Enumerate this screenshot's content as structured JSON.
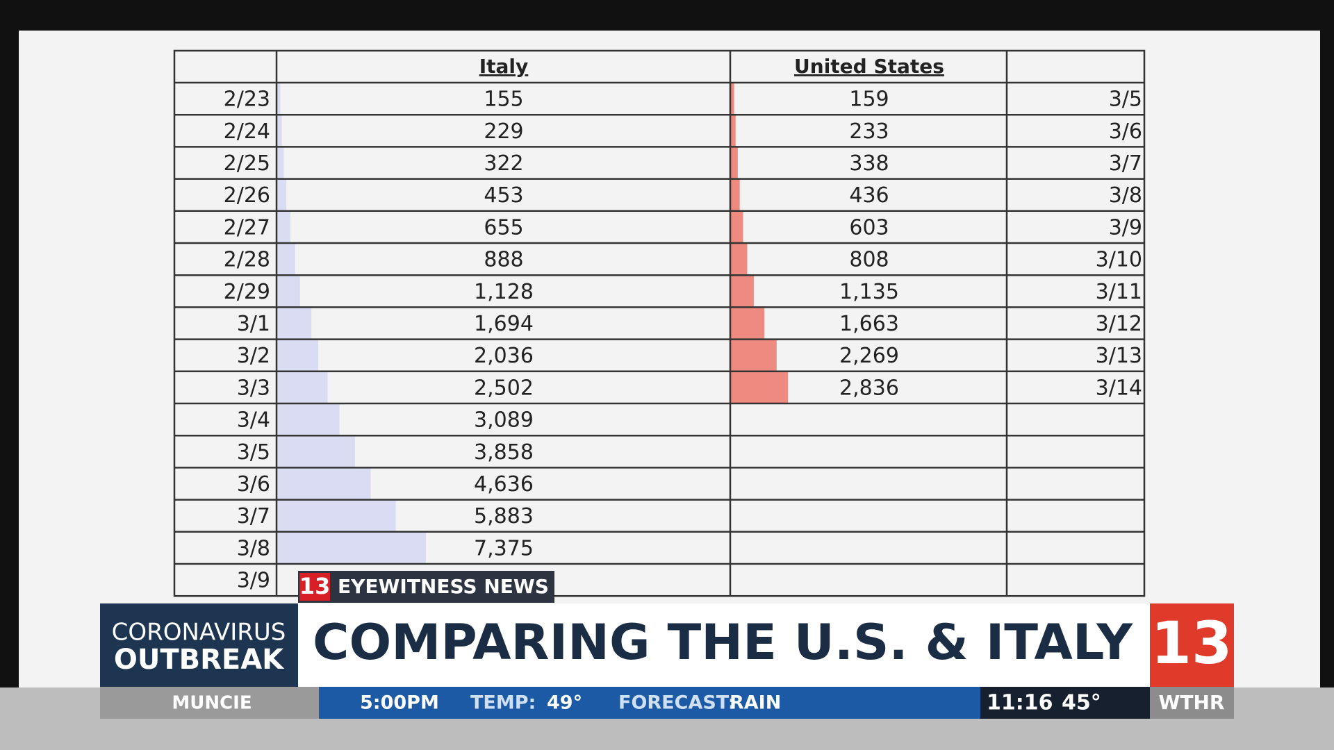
{
  "table": {
    "headers": [
      "Italy",
      "United States"
    ],
    "italy": [
      {
        "date": "2/23",
        "cases": 155
      },
      {
        "date": "2/24",
        "cases": 229
      },
      {
        "date": "2/25",
        "cases": 322
      },
      {
        "date": "2/26",
        "cases": 453
      },
      {
        "date": "2/27",
        "cases": 655
      },
      {
        "date": "2/28",
        "cases": 888
      },
      {
        "date": "2/29",
        "cases": {
          "value": 1128,
          "label": "1,128"
        }
      },
      {
        "date": "3/1",
        "cases": {
          "value": 1694,
          "label": "1,694"
        }
      },
      {
        "date": "3/2",
        "cases": {
          "value": 2036,
          "label": "2,036"
        }
      },
      {
        "date": "3/3",
        "cases": {
          "value": 2502,
          "label": "2,502"
        }
      },
      {
        "date": "3/4",
        "cases": {
          "value": 3089,
          "label": "3,089"
        }
      },
      {
        "date": "3/5",
        "cases": {
          "value": 3858,
          "label": "3,858"
        }
      },
      {
        "date": "3/6",
        "cases": {
          "value": 4636,
          "label": "4,636"
        }
      },
      {
        "date": "3/7",
        "cases": {
          "value": 5883,
          "label": "5,883"
        }
      },
      {
        "date": "3/8",
        "cases": {
          "value": 7375,
          "label": "7,375"
        }
      },
      {
        "date": "3/9"
      }
    ],
    "us": [
      {
        "date": "3/5",
        "cases": 159
      },
      {
        "date": "3/6",
        "cases": 233
      },
      {
        "date": "3/7",
        "cases": 338
      },
      {
        "date": "3/8",
        "cases": 436
      },
      {
        "date": "3/9",
        "cases": 603
      },
      {
        "date": "3/10",
        "cases": 808
      },
      {
        "date": "3/11",
        "cases": {
          "value": 1135,
          "label": "1,135"
        }
      },
      {
        "date": "3/12",
        "cases": {
          "value": 1663,
          "label": "1,663"
        }
      },
      {
        "date": "3/13",
        "cases": {
          "value": 2269,
          "label": "2,269"
        }
      },
      {
        "date": "3/14",
        "cases": {
          "value": 2836,
          "label": "2,836"
        }
      }
    ]
  },
  "banner": {
    "tag_number": "13",
    "tag": "EYEWITNESS NEWS",
    "section": [
      "CORONAVIRUS",
      "OUTBREAK"
    ],
    "headline": "COMPARING THE U.S. & ITALY",
    "logo": "13"
  },
  "ticker": {
    "location": "MUNCIE",
    "time": "5:00PM",
    "temp_label": "TEMP:",
    "temp": "49°",
    "forecast_label": "FORECAST:",
    "forecast": "RAIN",
    "clock": "11:16",
    "current_temp": "45°",
    "station": "WTHR"
  }
}
